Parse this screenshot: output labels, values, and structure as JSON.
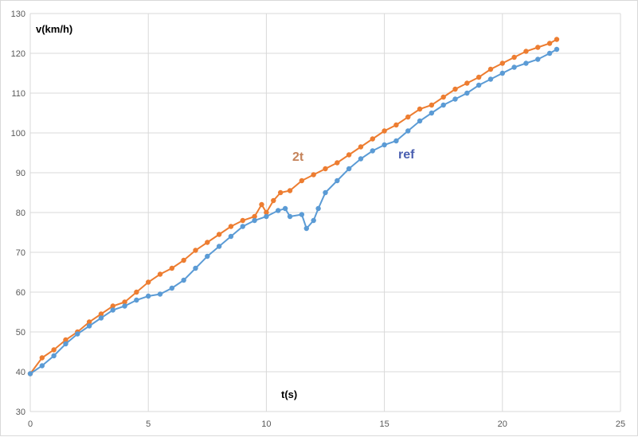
{
  "chart_data": {
    "type": "scatter",
    "title": "",
    "xlabel": "t(s)",
    "ylabel": "v(km/h)",
    "xlim": [
      0,
      25
    ],
    "ylim": [
      30,
      130
    ],
    "xticks": [
      0,
      5,
      10,
      15,
      20,
      25
    ],
    "yticks": [
      30,
      40,
      50,
      60,
      70,
      80,
      90,
      100,
      110,
      120,
      130
    ],
    "grid": true,
    "legend": "none",
    "series": [
      {
        "name": "2t",
        "color": "#ed7d31",
        "points": [
          [
            0,
            39.5
          ],
          [
            0.5,
            43.5
          ],
          [
            1,
            45.5
          ],
          [
            1.5,
            48
          ],
          [
            2,
            50
          ],
          [
            2.5,
            52.5
          ],
          [
            3,
            54.5
          ],
          [
            3.5,
            56.5
          ],
          [
            4,
            57.5
          ],
          [
            4.5,
            60
          ],
          [
            5,
            62.5
          ],
          [
            5.5,
            64.5
          ],
          [
            6,
            66
          ],
          [
            6.5,
            68
          ],
          [
            7,
            70.5
          ],
          [
            7.5,
            72.5
          ],
          [
            8,
            74.5
          ],
          [
            8.5,
            76.5
          ],
          [
            9,
            78
          ],
          [
            9.5,
            79
          ],
          [
            9.8,
            82
          ],
          [
            10,
            80
          ],
          [
            10.3,
            83
          ],
          [
            10.6,
            85
          ],
          [
            11,
            85.5
          ],
          [
            11.5,
            88
          ],
          [
            12,
            89.5
          ],
          [
            12.5,
            91
          ],
          [
            13,
            92.5
          ],
          [
            13.5,
            94.5
          ],
          [
            14,
            96.5
          ],
          [
            14.5,
            98.5
          ],
          [
            15,
            100.5
          ],
          [
            15.5,
            102
          ],
          [
            16,
            104
          ],
          [
            16.5,
            106
          ],
          [
            17,
            107
          ],
          [
            17.5,
            109
          ],
          [
            18,
            111
          ],
          [
            18.5,
            112.5
          ],
          [
            19,
            114
          ],
          [
            19.5,
            116
          ],
          [
            20,
            117.5
          ],
          [
            20.5,
            119
          ],
          [
            21,
            120.5
          ],
          [
            21.5,
            121.5
          ],
          [
            22,
            122.5
          ],
          [
            22.3,
            123.5
          ]
        ]
      },
      {
        "name": "ref",
        "color": "#5b9bd5",
        "points": [
          [
            0,
            39.5
          ],
          [
            0.5,
            41.5
          ],
          [
            1,
            44
          ],
          [
            1.5,
            47
          ],
          [
            2,
            49.5
          ],
          [
            2.5,
            51.5
          ],
          [
            3,
            53.5
          ],
          [
            3.5,
            55.5
          ],
          [
            4,
            56.5
          ],
          [
            4.5,
            58
          ],
          [
            5,
            59
          ],
          [
            5.5,
            59.5
          ],
          [
            6,
            61
          ],
          [
            6.5,
            63
          ],
          [
            7,
            66
          ],
          [
            7.5,
            69
          ],
          [
            8,
            71.5
          ],
          [
            8.5,
            74
          ],
          [
            9,
            76.5
          ],
          [
            9.5,
            78
          ],
          [
            10,
            79
          ],
          [
            10.5,
            80.5
          ],
          [
            10.8,
            81
          ],
          [
            11,
            79
          ],
          [
            11.5,
            79.5
          ],
          [
            11.7,
            76
          ],
          [
            12,
            78
          ],
          [
            12.2,
            81
          ],
          [
            12.5,
            85
          ],
          [
            13,
            88
          ],
          [
            13.5,
            91
          ],
          [
            14,
            93.5
          ],
          [
            14.5,
            95.5
          ],
          [
            15,
            97
          ],
          [
            15.5,
            98
          ],
          [
            16,
            100.5
          ],
          [
            16.5,
            103
          ],
          [
            17,
            105
          ],
          [
            17.5,
            107
          ],
          [
            18,
            108.5
          ],
          [
            18.5,
            110
          ],
          [
            19,
            112
          ],
          [
            19.5,
            113.5
          ],
          [
            20,
            115
          ],
          [
            20.5,
            116.5
          ],
          [
            21,
            117.5
          ],
          [
            21.5,
            118.5
          ],
          [
            22,
            120
          ],
          [
            22.3,
            121
          ]
        ]
      }
    ],
    "annotations": [
      {
        "text": "2t",
        "color": "#c5835a"
      },
      {
        "text": "ref",
        "color": "#4a5fb0"
      }
    ]
  }
}
